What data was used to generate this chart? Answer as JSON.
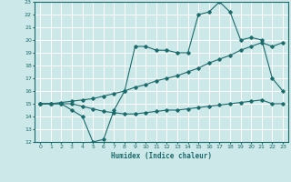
{
  "xlabel": "Humidex (Indice chaleur)",
  "background_color": "#cde8e8",
  "grid_color": "#ffffff",
  "line_color": "#1a6b6b",
  "xlim": [
    -0.5,
    23.5
  ],
  "ylim": [
    12,
    23
  ],
  "xticks": [
    0,
    1,
    2,
    3,
    4,
    5,
    6,
    7,
    8,
    9,
    10,
    11,
    12,
    13,
    14,
    15,
    16,
    17,
    18,
    19,
    20,
    21,
    22,
    23
  ],
  "yticks": [
    12,
    13,
    14,
    15,
    16,
    17,
    18,
    19,
    20,
    21,
    22,
    23
  ],
  "series": [
    {
      "x": [
        0,
        1,
        2,
        3,
        4,
        5,
        6,
        7,
        8,
        9,
        10,
        11,
        12,
        13,
        14,
        15,
        16,
        17,
        18,
        19,
        20,
        21,
        22,
        23
      ],
      "y": [
        15,
        15,
        15,
        14.5,
        14,
        12,
        12.2,
        14.5,
        16,
        19.5,
        19.5,
        19.2,
        19.2,
        19,
        19,
        22,
        22.2,
        23,
        22.2,
        20,
        20.2,
        20,
        17,
        16
      ]
    },
    {
      "x": [
        0,
        1,
        2,
        3,
        4,
        5,
        6,
        7,
        8,
        9,
        10,
        11,
        12,
        13,
        14,
        15,
        16,
        17,
        18,
        19,
        20,
        21,
        22,
        23
      ],
      "y": [
        15,
        15,
        15.1,
        15.2,
        15.3,
        15.4,
        15.6,
        15.8,
        16.0,
        16.3,
        16.5,
        16.8,
        17.0,
        17.2,
        17.5,
        17.8,
        18.2,
        18.5,
        18.8,
        19.2,
        19.5,
        19.8,
        19.5,
        19.8
      ]
    },
    {
      "x": [
        0,
        1,
        2,
        3,
        4,
        5,
        6,
        7,
        8,
        9,
        10,
        11,
        12,
        13,
        14,
        15,
        16,
        17,
        18,
        19,
        20,
        21,
        22,
        23
      ],
      "y": [
        15,
        15,
        15,
        15,
        14.8,
        14.6,
        14.4,
        14.3,
        14.2,
        14.2,
        14.3,
        14.4,
        14.5,
        14.5,
        14.6,
        14.7,
        14.8,
        14.9,
        15.0,
        15.1,
        15.2,
        15.3,
        15.0,
        15.0
      ]
    }
  ]
}
